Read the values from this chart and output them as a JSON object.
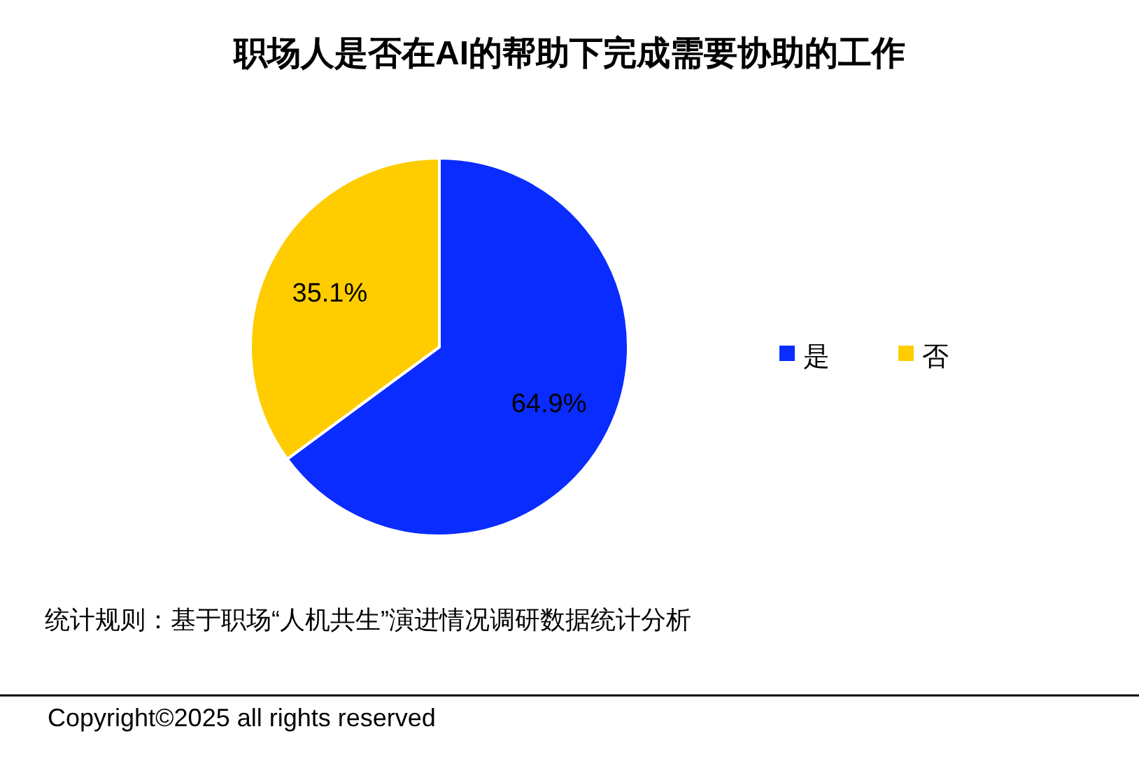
{
  "chart_data": {
    "type": "pie",
    "title": "职场人是否在AI的帮助下完成需要协助的工作",
    "categories": [
      "是",
      "否"
    ],
    "values": [
      64.9,
      35.1
    ],
    "colors": [
      "#0a2cff",
      "#ffcc00"
    ],
    "value_labels": [
      "64.9%",
      "35.1%"
    ],
    "legend": "right",
    "annotations": [
      "统计规则：基于职场“人机共生”演进情况调研数据统计分析",
      "Copyright©2025 all rights reserved"
    ]
  }
}
